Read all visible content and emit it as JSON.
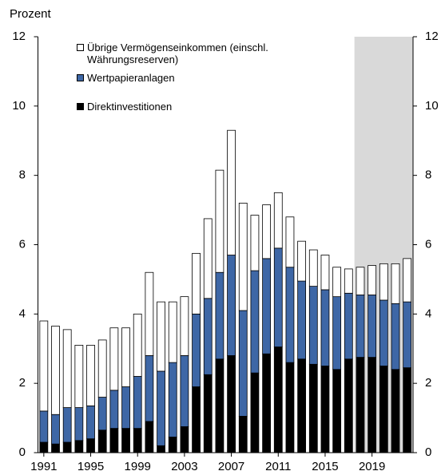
{
  "chart_data": {
    "type": "stacked_bar",
    "y_label": "Prozent",
    "categories": [
      "1991",
      null,
      null,
      null,
      "1995",
      null,
      null,
      null,
      "1999",
      null,
      null,
      null,
      "2003",
      null,
      null,
      null,
      "2007",
      null,
      null,
      null,
      "2011",
      null,
      null,
      null,
      "2015",
      null,
      null,
      null,
      "2019",
      null,
      null,
      null
    ],
    "series": [
      {
        "name": "Direktinvestitionen",
        "color": "#000000",
        "values": [
          0.3,
          0.25,
          0.3,
          0.35,
          0.4,
          0.65,
          0.7,
          0.7,
          0.7,
          0.9,
          0.2,
          0.45,
          0.75,
          1.9,
          2.25,
          2.7,
          2.8,
          1.05,
          2.3,
          2.85,
          3.05,
          2.6,
          2.7,
          2.55,
          2.5,
          2.4,
          2.7,
          2.75,
          2.75,
          2.5,
          2.4,
          2.45
        ]
      },
      {
        "name": "Wertpapieranlagen",
        "color": "#3e67a6",
        "values": [
          0.9,
          0.85,
          1.0,
          0.95,
          0.95,
          0.95,
          1.1,
          1.2,
          1.5,
          1.9,
          2.15,
          2.15,
          2.05,
          2.1,
          2.2,
          2.5,
          2.9,
          3.05,
          2.95,
          2.75,
          2.85,
          2.75,
          2.25,
          2.25,
          2.2,
          2.1,
          1.9,
          1.8,
          1.8,
          1.9,
          1.9,
          1.9
        ]
      },
      {
        "name": "Übrige Vermögenseinkommen (einschl. Währungsreserven)",
        "color": "#ffffff",
        "values": [
          2.6,
          2.55,
          2.25,
          1.8,
          1.75,
          1.65,
          1.8,
          1.7,
          1.8,
          2.4,
          2.0,
          1.75,
          1.7,
          1.75,
          2.3,
          2.95,
          3.6,
          3.1,
          1.6,
          1.55,
          1.6,
          1.45,
          1.15,
          1.05,
          1.0,
          0.85,
          0.7,
          0.8,
          0.85,
          1.05,
          1.15,
          1.25
        ]
      }
    ],
    "ylim": [
      0,
      12
    ],
    "yticks": [
      0,
      2,
      4,
      6,
      8,
      10,
      12
    ],
    "y2lim": [
      0,
      12
    ],
    "y2ticks": [
      0,
      2,
      4,
      6,
      8,
      10,
      12
    ],
    "highlight": {
      "start": 27,
      "end": 31,
      "color": "#d9d9d9"
    },
    "legend": "upper left"
  }
}
